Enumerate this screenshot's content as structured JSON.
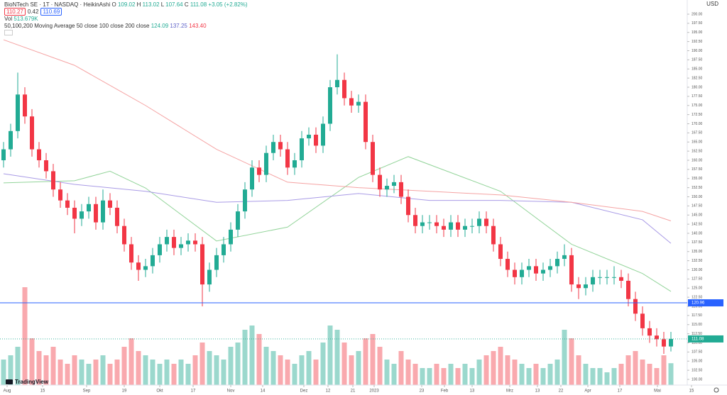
{
  "header": {
    "symbol": "BioNTech SE · 1T · NASDAQ · HeikinAshi",
    "ohlc": [
      {
        "key": "O",
        "value": "109.02"
      },
      {
        "key": "H",
        "value": "113.02"
      },
      {
        "key": "L",
        "value": "107.64"
      },
      {
        "key": "C",
        "value": "111.08"
      }
    ],
    "change": "+3.05 (+2.82%)",
    "bid": "110.27",
    "spread": "0.42",
    "ask": "110.69",
    "vol_label": "Vol",
    "vol_value": "513.679K",
    "ma_label": "50,100,200 Moving Average 50 close 100 close 200 close",
    "ma_values": [
      "124.09",
      "137.25",
      "143.40"
    ]
  },
  "brand": "TradingView",
  "chart_data": {
    "type": "candlestick",
    "currency": "USD",
    "up_color": "#22ab94",
    "down_color": "#f23645",
    "volume_up_color": "#9bd8cd",
    "volume_down_color": "#f9a9ae",
    "xlim": [
      -0.5,
      101.5
    ],
    "ylim": [
      100,
      200
    ],
    "vlim": [
      0,
      2500000
    ],
    "grid": false,
    "xticks": [
      {
        "value": 0.5,
        "label": "Aug"
      },
      {
        "value": 5.5,
        "label": "15"
      },
      {
        "value": 11.7,
        "label": "Sep"
      },
      {
        "value": 17,
        "label": "19"
      },
      {
        "value": 22,
        "label": "Okt"
      },
      {
        "value": 26.7,
        "label": "17"
      },
      {
        "value": 32,
        "label": "Nov"
      },
      {
        "value": 36.5,
        "label": "14"
      },
      {
        "value": 42.3,
        "label": "Dez"
      },
      {
        "value": 45.7,
        "label": "12"
      },
      {
        "value": 49.2,
        "label": "21"
      },
      {
        "value": 52.2,
        "label": "2023"
      },
      {
        "value": 58.9,
        "label": "23"
      },
      {
        "value": 62.1,
        "label": "Feb"
      },
      {
        "value": 66,
        "label": "13"
      },
      {
        "value": 71.3,
        "label": "Mrz"
      },
      {
        "value": 75.2,
        "label": "13"
      },
      {
        "value": 78.5,
        "label": "22"
      },
      {
        "value": 82.3,
        "label": "Apr"
      },
      {
        "value": 86.8,
        "label": "17"
      },
      {
        "value": 92.1,
        "label": "Mai"
      },
      {
        "value": 96.9,
        "label": "15"
      }
    ],
    "yticks": [
      {
        "value": 100,
        "label": "100.00"
      },
      {
        "value": 102.5,
        "label": "102.50"
      },
      {
        "value": 105,
        "label": "105.00"
      },
      {
        "value": 107.5,
        "label": "107.50"
      },
      {
        "value": 110,
        "label": "110.00"
      },
      {
        "value": 112.5,
        "label": "112.50"
      },
      {
        "value": 115,
        "label": "115.00"
      },
      {
        "value": 117.5,
        "label": "117.50"
      },
      {
        "value": 120,
        "label": "120.00"
      },
      {
        "value": 122.5,
        "label": "122.50"
      },
      {
        "value": 125,
        "label": "125.00"
      },
      {
        "value": 127.5,
        "label": "127.50"
      },
      {
        "value": 130,
        "label": "130.00"
      },
      {
        "value": 132.5,
        "label": "132.50"
      },
      {
        "value": 135,
        "label": "135.00"
      },
      {
        "value": 137.5,
        "label": "137.50"
      },
      {
        "value": 140,
        "label": "140.00"
      },
      {
        "value": 142.5,
        "label": "142.50"
      },
      {
        "value": 145,
        "label": "145.00"
      },
      {
        "value": 147.5,
        "label": "147.50"
      },
      {
        "value": 150,
        "label": "150.00"
      },
      {
        "value": 152.5,
        "label": "152.50"
      },
      {
        "value": 155,
        "label": "155.00"
      },
      {
        "value": 157.5,
        "label": "157.50"
      },
      {
        "value": 160,
        "label": "160.00"
      },
      {
        "value": 162.5,
        "label": "162.50"
      },
      {
        "value": 165,
        "label": "165.00"
      },
      {
        "value": 167.5,
        "label": "167.50"
      },
      {
        "value": 170,
        "label": "170.00"
      },
      {
        "value": 172.5,
        "label": "172.50"
      },
      {
        "value": 175,
        "label": "175.00"
      },
      {
        "value": 177.5,
        "label": "177.50"
      },
      {
        "value": 180,
        "label": "180.00"
      },
      {
        "value": 182.5,
        "label": "182.50"
      },
      {
        "value": 185,
        "label": "185.00"
      },
      {
        "value": 187.5,
        "label": "187.50"
      },
      {
        "value": 190,
        "label": "190.00"
      },
      {
        "value": 192.5,
        "label": "192.50"
      },
      {
        "value": 195,
        "label": "195.00"
      },
      {
        "value": 197.5,
        "label": "197.50"
      },
      {
        "value": 200,
        "label": "200.00"
      }
    ],
    "open": [
      160,
      163,
      168,
      178,
      172,
      163,
      160,
      157,
      152,
      149,
      147,
      144,
      146,
      148,
      143,
      149,
      147,
      142,
      137,
      132,
      130,
      131,
      134,
      137,
      139,
      136,
      137,
      138,
      137,
      126,
      130,
      134,
      137,
      141,
      146,
      152,
      158,
      156,
      162,
      165,
      163,
      158,
      160,
      166,
      167,
      164,
      170,
      180,
      182,
      177,
      175,
      176,
      165,
      156,
      152,
      153,
      154,
      150,
      145,
      142,
      143,
      143,
      142,
      141,
      143,
      141,
      142,
      142,
      144,
      142,
      137,
      133,
      130,
      128,
      130,
      131,
      129,
      130,
      131,
      133,
      134,
      126,
      125,
      126,
      128,
      128,
      128,
      128,
      127,
      122,
      118,
      114,
      112,
      111,
      109.02
    ],
    "high": [
      165,
      170,
      184,
      180,
      174,
      165,
      162,
      159,
      154,
      151,
      149,
      148,
      150,
      150,
      152,
      151,
      149,
      144,
      139,
      134,
      133,
      136,
      139,
      141,
      141,
      139,
      140,
      140,
      139,
      132,
      136,
      139,
      143,
      148,
      154,
      160,
      160,
      164,
      167,
      167,
      165,
      162,
      168,
      169,
      169,
      172,
      182,
      189,
      184,
      179,
      178,
      178,
      167,
      158,
      155,
      156,
      156,
      152,
      147,
      145,
      145,
      145,
      144,
      145,
      145,
      144,
      144,
      146,
      146,
      144,
      139,
      135,
      132,
      132,
      133,
      133,
      132,
      133,
      135,
      137,
      136,
      128,
      128,
      130,
      130,
      130,
      131,
      130,
      129,
      124,
      120,
      116,
      114,
      113,
      113.02
    ],
    "low": [
      158,
      161,
      166,
      170,
      161,
      158,
      155,
      150,
      147,
      145,
      140,
      142,
      144,
      141,
      141,
      145,
      140,
      135,
      130,
      127,
      128,
      129,
      132,
      135,
      134,
      134,
      135,
      135,
      120,
      124,
      128,
      132,
      135,
      139,
      144,
      150,
      154,
      154,
      160,
      161,
      156,
      156,
      158,
      164,
      162,
      162,
      168,
      178,
      175,
      173,
      173,
      163,
      154,
      150,
      150,
      151,
      148,
      143,
      140,
      140,
      141,
      140,
      139,
      139,
      139,
      139,
      140,
      140,
      140,
      135,
      131,
      128,
      126,
      126,
      128,
      127,
      127,
      128,
      129,
      131,
      124,
      122,
      123,
      124,
      126,
      126,
      126,
      125,
      120,
      116,
      112,
      110,
      109,
      107,
      107.64
    ],
    "close": [
      163,
      168,
      178,
      172,
      163,
      160,
      157,
      152,
      149,
      147,
      144,
      146,
      148,
      143,
      149,
      147,
      142,
      137,
      132,
      130,
      131,
      134,
      137,
      139,
      136,
      137,
      138,
      137,
      126,
      130,
      134,
      137,
      141,
      146,
      152,
      158,
      156,
      162,
      165,
      163,
      158,
      160,
      166,
      167,
      164,
      170,
      180,
      182,
      177,
      175,
      176,
      165,
      156,
      152,
      153,
      154,
      150,
      145,
      142,
      143,
      143,
      142,
      141,
      143,
      141,
      142,
      142,
      144,
      142,
      137,
      133,
      130,
      128,
      130,
      131,
      129,
      130,
      131,
      133,
      134,
      126,
      125,
      126,
      128,
      128,
      128,
      128,
      127,
      122,
      118,
      114,
      112,
      111,
      109,
      111.08
    ],
    "volume": [
      600000,
      700000,
      900000,
      2300000,
      1100000,
      800000,
      700000,
      900000,
      600000,
      500000,
      700000,
      600000,
      500000,
      600000,
      700000,
      500000,
      600000,
      900000,
      1100000,
      800000,
      700000,
      600000,
      500000,
      600000,
      500000,
      600000,
      500000,
      700000,
      1000000,
      800000,
      700000,
      600000,
      900000,
      1000000,
      1300000,
      1400000,
      1200000,
      900000,
      800000,
      700000,
      600000,
      500000,
      700000,
      800000,
      600000,
      1000000,
      1400000,
      1300000,
      1000000,
      700000,
      800000,
      1100000,
      1200000,
      900000,
      600000,
      500000,
      800000,
      600000,
      500000,
      400000,
      400000,
      500000,
      400000,
      500000,
      400000,
      500000,
      400000,
      600000,
      700000,
      800000,
      900000,
      700000,
      600000,
      500000,
      400000,
      500000,
      400000,
      500000,
      600000,
      1300000,
      1100000,
      700000,
      500000,
      400000,
      400000,
      300000,
      400000,
      500000,
      700000,
      800000,
      600000,
      500000,
      400000,
      700000,
      513679
    ],
    "ma": [
      {
        "color": "#93d49a",
        "x": [
          0,
          10,
          15,
          20,
          30,
          40,
          50,
          57,
          70,
          80,
          90,
          94
        ],
        "values": [
          153.8,
          154.4,
          157,
          152.4,
          137.9,
          141.7,
          155.3,
          161,
          151.5,
          137,
          129,
          124.09
        ]
      },
      {
        "color": "#a99be6",
        "x": [
          0,
          10,
          20,
          30,
          40,
          50,
          60,
          70,
          80,
          90,
          94
        ],
        "values": [
          156.3,
          153.4,
          151.5,
          148.5,
          149,
          150.9,
          149,
          149,
          148.5,
          143.7,
          137.25
        ]
      },
      {
        "color": "#f5a3a3",
        "x": [
          0,
          10,
          20,
          30,
          40,
          50,
          60,
          70,
          80,
          90,
          94
        ],
        "values": [
          193,
          186,
          175,
          163,
          154,
          152.5,
          151.5,
          150.5,
          148.5,
          146,
          143.4
        ]
      }
    ],
    "price_line": {
      "value": 120.96,
      "label": "120.96",
      "color": "#2962ff"
    },
    "last_price": {
      "value": 111.08,
      "label": "111.08"
    }
  }
}
